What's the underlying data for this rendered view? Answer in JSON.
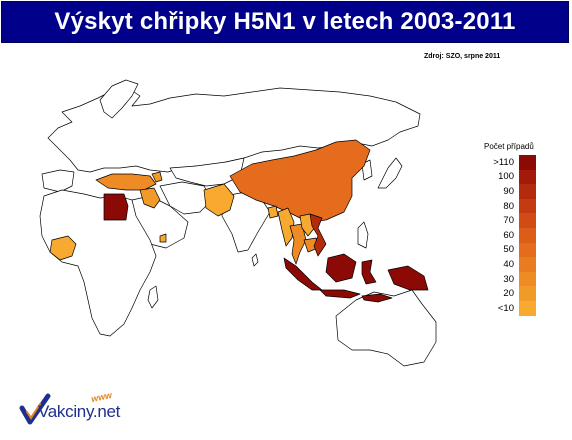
{
  "title": "Výskyt chřipky H5N1 v letech 2003-2011",
  "source": "Zdroj: SZO, srpne 2011",
  "legend": {
    "title": "Počet případů",
    "entries": [
      {
        "label": ">110",
        "color": "#8b0a06"
      },
      {
        "label": "100",
        "color": "#a21a09"
      },
      {
        "label": "90",
        "color": "#b42a0c"
      },
      {
        "label": "80",
        "color": "#c53a10"
      },
      {
        "label": "70",
        "color": "#d24b14"
      },
      {
        "label": "60",
        "color": "#dd5c18"
      },
      {
        "label": "50",
        "color": "#e46c1c"
      },
      {
        "label": "40",
        "color": "#e97c20"
      },
      {
        "label": "30",
        "color": "#ee8b24"
      },
      {
        "label": "20",
        "color": "#f29a28"
      },
      {
        "label": "<10",
        "color": "#f7a930"
      }
    ]
  },
  "map_regions": [
    {
      "name": "Egypt",
      "color": "#8b0a06"
    },
    {
      "name": "Indonesia",
      "color": "#8b0a06"
    },
    {
      "name": "China",
      "color": "#e46c1c"
    },
    {
      "name": "Vietnam",
      "color": "#b42a0c"
    },
    {
      "name": "Cambodia",
      "color": "#ee8b24"
    },
    {
      "name": "Thailand",
      "color": "#ee8b24"
    },
    {
      "name": "Laos",
      "color": "#f7a930"
    },
    {
      "name": "Myanmar",
      "color": "#f7a930"
    },
    {
      "name": "Bangladesh",
      "color": "#f7a930"
    },
    {
      "name": "Pakistan",
      "color": "#f7a930"
    },
    {
      "name": "Turkey",
      "color": "#ee8b24"
    },
    {
      "name": "Iraq",
      "color": "#f29a28"
    },
    {
      "name": "Azerbaijan",
      "color": "#f29a28"
    },
    {
      "name": "Djibouti",
      "color": "#f7a930"
    },
    {
      "name": "Nigeria",
      "color": "#f7a930"
    }
  ],
  "logo": {
    "main": "Vakciny.net",
    "accent": "www"
  }
}
